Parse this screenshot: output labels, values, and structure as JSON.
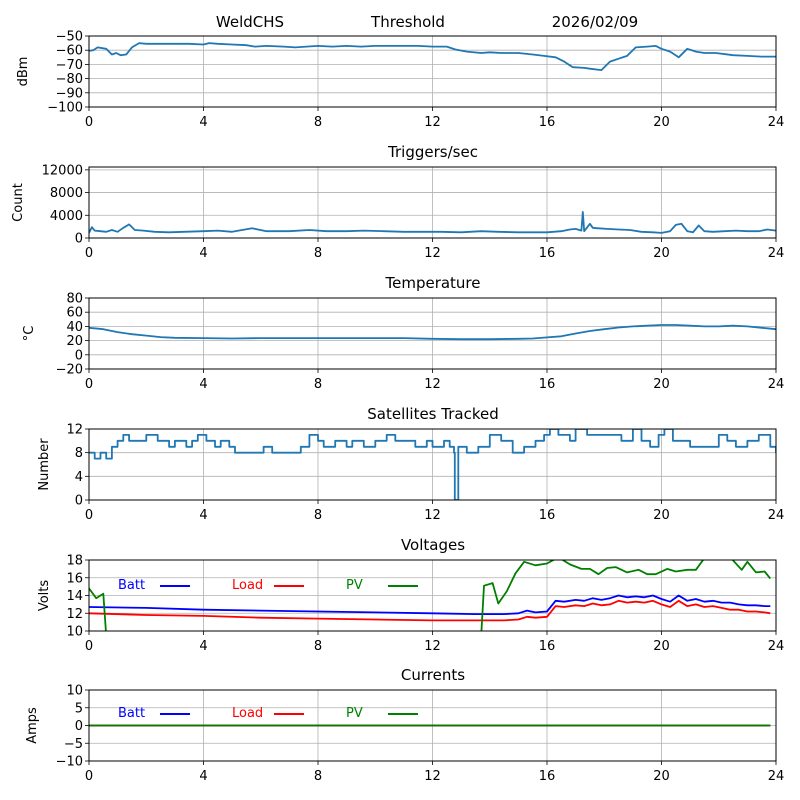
{
  "header": {
    "station": "WeldCHS",
    "mode": "Threshold",
    "date": "2026/02/09"
  },
  "colors": {
    "primary": "#1f77b4",
    "batt": "#0000ff",
    "load": "#ff0000",
    "pv": "#008000",
    "grid": "#b0b0b0"
  },
  "chart_data": [
    {
      "type": "line",
      "title": "",
      "xlabel": "",
      "ylabel": "dBm",
      "xlim": [
        0,
        24
      ],
      "ylim": [
        -100,
        -50
      ],
      "xticks": [
        "0",
        "4",
        "8",
        "12",
        "16",
        "20",
        "24"
      ],
      "yticks": [
        "−50",
        "−60",
        "−70",
        "−80",
        "−90",
        "−100"
      ],
      "ytick_values": [
        -50,
        -60,
        -70,
        -80,
        -90,
        -100
      ],
      "grid": true,
      "series": [
        {
          "name": "Threshold",
          "color": "#1f77b4",
          "x": [
            0,
            0.15,
            0.3,
            0.6,
            0.8,
            0.95,
            1.1,
            1.3,
            1.5,
            1.75,
            2.0,
            2.5,
            3.0,
            3.5,
            4.0,
            4.2,
            4.5,
            5.0,
            5.5,
            5.8,
            6.2,
            6.8,
            7.2,
            7.6,
            8.0,
            8.5,
            9.0,
            9.5,
            10.0,
            10.5,
            11.0,
            11.5,
            12.0,
            12.5,
            12.8,
            13.2,
            13.7,
            14.0,
            14.4,
            15.0,
            15.5,
            15.9,
            16.3,
            16.6,
            16.9,
            17.3,
            17.5,
            17.9,
            18.2,
            18.5,
            18.8,
            19.1,
            19.5,
            19.8,
            20.0,
            20.3,
            20.6,
            20.9,
            21.2,
            21.5,
            21.9,
            22.5,
            23.0,
            23.5,
            24.0
          ],
          "y": [
            -60.5,
            -60,
            -58,
            -59,
            -63,
            -62,
            -63.5,
            -63,
            -58,
            -55,
            -55.5,
            -55.5,
            -55.5,
            -55.5,
            -56,
            -55,
            -55.5,
            -56,
            -56.5,
            -57.5,
            -57,
            -57.5,
            -58,
            -57.5,
            -57,
            -57.5,
            -57,
            -57.5,
            -57,
            -57,
            -57,
            -57,
            -57.5,
            -57.5,
            -59.5,
            -61,
            -62,
            -61.5,
            -62,
            -62,
            -63,
            -64,
            -65,
            -68,
            -72,
            -72.5,
            -73,
            -74,
            -68,
            -66,
            -64,
            -58,
            -57.5,
            -57,
            -59,
            -61,
            -65,
            -59,
            -61,
            -62,
            -62,
            -63.5,
            -64,
            -64.5,
            -64.5
          ]
        }
      ]
    },
    {
      "type": "line",
      "title": "Triggers/sec",
      "xlabel": "",
      "ylabel": "Count",
      "xlim": [
        0,
        24
      ],
      "ylim": [
        0,
        12500
      ],
      "xticks": [
        "0",
        "4",
        "8",
        "12",
        "16",
        "20",
        "24"
      ],
      "yticks": [
        "12000",
        "8000",
        "4000",
        "0"
      ],
      "ytick_values": [
        12000,
        8000,
        4000,
        0
      ],
      "grid": true,
      "series": [
        {
          "name": "Triggers",
          "color": "#1f77b4",
          "x": [
            0,
            0.1,
            0.2,
            0.4,
            0.6,
            0.8,
            1.0,
            1.2,
            1.4,
            1.6,
            1.9,
            2.3,
            2.8,
            3.3,
            4.0,
            4.5,
            5.0,
            5.7,
            6.2,
            7.0,
            7.7,
            8.3,
            9.0,
            9.6,
            10.3,
            11.0,
            11.7,
            12.3,
            13.0,
            13.7,
            14.3,
            15.0,
            15.5,
            16.0,
            16.5,
            16.8,
            17.0,
            17.2,
            17.25,
            17.3,
            17.5,
            17.6,
            17.8,
            18.1,
            18.5,
            18.9,
            19.3,
            19.7,
            20.0,
            20.3,
            20.5,
            20.7,
            20.9,
            21.1,
            21.3,
            21.5,
            21.8,
            22.2,
            22.6,
            23.0,
            23.4,
            23.7,
            24.0
          ],
          "y": [
            900,
            1900,
            1300,
            1200,
            1100,
            1400,
            1100,
            1800,
            2400,
            1400,
            1300,
            1100,
            1000,
            1100,
            1200,
            1300,
            1100,
            1700,
            1200,
            1200,
            1400,
            1200,
            1200,
            1300,
            1200,
            1100,
            1100,
            1100,
            1000,
            1200,
            1100,
            1000,
            1000,
            1000,
            1200,
            1500,
            1600,
            1300,
            4600,
            1200,
            2500,
            1800,
            1700,
            1600,
            1500,
            1400,
            1100,
            1000,
            900,
            1200,
            2300,
            2500,
            1200,
            1000,
            2200,
            1200,
            1100,
            1200,
            1300,
            1200,
            1200,
            1500,
            1300
          ]
        }
      ]
    },
    {
      "type": "line",
      "title": "Temperature",
      "xlabel": "",
      "ylabel": "°C",
      "xlim": [
        0,
        24
      ],
      "ylim": [
        -20,
        80
      ],
      "xticks": [
        "0",
        "4",
        "8",
        "12",
        "16",
        "20",
        "24"
      ],
      "yticks": [
        "80",
        "60",
        "40",
        "20",
        "0",
        "−20"
      ],
      "ytick_values": [
        80,
        60,
        40,
        20,
        0,
        -20
      ],
      "grid": true,
      "series": [
        {
          "name": "Temperature",
          "color": "#1f77b4",
          "x": [
            0,
            0.5,
            1.0,
            1.5,
            2.0,
            2.5,
            3.0,
            4.0,
            5.0,
            6.0,
            7.0,
            8.0,
            9.0,
            10.0,
            11.0,
            12.0,
            13.0,
            14.0,
            15.0,
            15.5,
            16.0,
            16.5,
            17.0,
            17.5,
            18.0,
            18.5,
            19.0,
            19.5,
            20.0,
            20.5,
            21.0,
            21.5,
            22.0,
            22.5,
            23.0,
            23.5,
            24.0
          ],
          "y": [
            38,
            36,
            32,
            29,
            27,
            25,
            24,
            23.5,
            23,
            23.5,
            23.5,
            23.5,
            23.5,
            23.5,
            23.5,
            22.5,
            22,
            22,
            22.5,
            23,
            24.5,
            26,
            30,
            33.5,
            36,
            38.5,
            40,
            41,
            42,
            42,
            41,
            40,
            40,
            41,
            40,
            38,
            36
          ]
        }
      ]
    },
    {
      "type": "line",
      "title": "Satellites Tracked",
      "xlabel": "",
      "ylabel": "Number",
      "xlim": [
        0,
        24
      ],
      "ylim": [
        0,
        12
      ],
      "xticks": [
        "0",
        "4",
        "8",
        "12",
        "16",
        "20",
        "24"
      ],
      "yticks": [
        "12",
        "8",
        "4",
        "0"
      ],
      "ytick_values": [
        12,
        8,
        4,
        0
      ],
      "grid": true,
      "step": true,
      "series": [
        {
          "name": "Satellites",
          "color": "#1f77b4",
          "x": [
            0,
            0.2,
            0.4,
            0.6,
            0.8,
            1.0,
            1.2,
            1.4,
            2.0,
            2.4,
            2.8,
            3.0,
            3.4,
            3.6,
            3.8,
            4.1,
            4.4,
            4.6,
            4.9,
            5.1,
            6.1,
            6.4,
            7.4,
            7.7,
            8.0,
            8.2,
            8.6,
            9.0,
            9.2,
            9.6,
            10.0,
            10.4,
            10.7,
            11.0,
            11.4,
            11.8,
            12.0,
            12.4,
            12.6,
            12.75,
            12.78,
            12.9,
            13.2,
            13.6,
            14.0,
            14.4,
            14.8,
            15.2,
            15.6,
            15.9,
            16.1,
            16.4,
            16.8,
            17.0,
            17.4,
            18.0,
            18.6,
            19.0,
            19.3,
            19.6,
            19.9,
            20.1,
            20.4,
            21.0,
            21.6,
            22.0,
            22.3,
            22.6,
            23.0,
            23.4,
            23.8,
            24.0
          ],
          "y": [
            8,
            7,
            8,
            7,
            9,
            10,
            11,
            10,
            11,
            10,
            9,
            10,
            9,
            10,
            11,
            10,
            9,
            10,
            9,
            8,
            9,
            8,
            9,
            11,
            10,
            9,
            10,
            9,
            10,
            9,
            10,
            11,
            10,
            10,
            9,
            10,
            9,
            10,
            9,
            8,
            0,
            9,
            8,
            9,
            11,
            10,
            8,
            9,
            10,
            11,
            12,
            11,
            10,
            12,
            11,
            11,
            10,
            12,
            10,
            9,
            11,
            12,
            10,
            9,
            9,
            11,
            10,
            9,
            10,
            11,
            9,
            8
          ]
        }
      ]
    },
    {
      "type": "line",
      "title": "Voltages",
      "xlabel": "",
      "ylabel": "Volts",
      "xlim": [
        0,
        24
      ],
      "ylim": [
        10,
        18
      ],
      "xticks": [
        "0",
        "4",
        "8",
        "12",
        "16",
        "20",
        "24"
      ],
      "yticks": [
        "18",
        "16",
        "14",
        "12",
        "10"
      ],
      "ytick_values": [
        18,
        16,
        14,
        12,
        10
      ],
      "grid": true,
      "legend": "top-left-inline",
      "series": [
        {
          "name": "Batt",
          "color": "#0000ff",
          "x": [
            0,
            2,
            4,
            6,
            8,
            10,
            12,
            13.5,
            14.5,
            15.0,
            15.3,
            15.6,
            16.0,
            16.3,
            16.6,
            17.0,
            17.3,
            17.6,
            17.9,
            18.2,
            18.5,
            18.8,
            19.1,
            19.4,
            19.7,
            20.0,
            20.3,
            20.6,
            20.9,
            21.2,
            21.5,
            21.8,
            22.1,
            22.4,
            22.7,
            23.0,
            23.3,
            23.6,
            23.8
          ],
          "y": [
            12.7,
            12.6,
            12.4,
            12.3,
            12.2,
            12.1,
            12.0,
            11.9,
            11.9,
            12.0,
            12.3,
            12.1,
            12.2,
            13.4,
            13.3,
            13.5,
            13.4,
            13.7,
            13.5,
            13.7,
            14.0,
            13.8,
            13.9,
            13.8,
            14.0,
            13.6,
            13.3,
            14.0,
            13.4,
            13.6,
            13.3,
            13.4,
            13.2,
            13.2,
            13.0,
            12.9,
            12.9,
            12.8,
            12.8
          ]
        },
        {
          "name": "Load",
          "color": "#ff0000",
          "x": [
            0,
            2,
            4,
            6,
            8,
            10,
            12,
            13.5,
            14.5,
            15.0,
            15.3,
            15.6,
            16.0,
            16.3,
            16.6,
            17.0,
            17.3,
            17.6,
            17.9,
            18.2,
            18.5,
            18.8,
            19.1,
            19.4,
            19.7,
            20.0,
            20.3,
            20.6,
            20.9,
            21.2,
            21.5,
            21.8,
            22.1,
            22.4,
            22.7,
            23.0,
            23.3,
            23.6,
            23.8
          ],
          "y": [
            12.0,
            11.8,
            11.7,
            11.5,
            11.4,
            11.3,
            11.2,
            11.2,
            11.2,
            11.3,
            11.6,
            11.5,
            11.6,
            12.8,
            12.7,
            12.9,
            12.8,
            13.1,
            12.9,
            13.0,
            13.4,
            13.2,
            13.3,
            13.2,
            13.4,
            13.0,
            12.7,
            13.4,
            12.8,
            13.0,
            12.7,
            12.8,
            12.6,
            12.4,
            12.4,
            12.2,
            12.2,
            12.1,
            12.0
          ]
        },
        {
          "name": "PV",
          "color": "#008000",
          "x": [
            0,
            0.25,
            0.5,
            0.6,
            13.7,
            13.8,
            14.1,
            14.3,
            14.6,
            14.9,
            15.2,
            15.6,
            16.0,
            16.4,
            16.8,
            17.2,
            17.5,
            17.8,
            18.1,
            18.4,
            18.8,
            19.2,
            19.5,
            19.8,
            20.2,
            20.5,
            20.9,
            21.2,
            21.5,
            22.4,
            22.8,
            23.0,
            23.3,
            23.6,
            23.8
          ],
          "y": [
            14.8,
            13.7,
            14.2,
            9.5,
            9.5,
            15.1,
            15.4,
            13.1,
            14.5,
            16.5,
            17.8,
            17.4,
            17.6,
            18.3,
            17.5,
            17.0,
            17.0,
            16.4,
            17.1,
            17.2,
            16.6,
            16.9,
            16.4,
            16.4,
            17.0,
            16.7,
            16.9,
            16.9,
            18.2,
            18.3,
            16.9,
            17.8,
            16.6,
            16.7,
            15.9
          ]
        }
      ]
    },
    {
      "type": "line",
      "title": "Currents",
      "xlabel": "",
      "ylabel": "Amps",
      "xlim": [
        0,
        24
      ],
      "ylim": [
        -10,
        10
      ],
      "xticks": [
        "0",
        "4",
        "8",
        "12",
        "16",
        "20",
        "24"
      ],
      "yticks": [
        "10",
        "5",
        "0",
        "−5",
        "−10"
      ],
      "ytick_values": [
        10,
        5,
        0,
        -5,
        -10
      ],
      "grid": true,
      "legend": "top-left-inline",
      "series": [
        {
          "name": "Batt",
          "color": "#0000ff",
          "x": [
            0,
            23.8
          ],
          "y": [
            0,
            0
          ]
        },
        {
          "name": "Load",
          "color": "#ff0000",
          "x": [
            0,
            23.8
          ],
          "y": [
            0,
            0
          ]
        },
        {
          "name": "PV",
          "color": "#008000",
          "x": [
            0,
            23.8
          ],
          "y": [
            0,
            0
          ]
        }
      ]
    }
  ]
}
